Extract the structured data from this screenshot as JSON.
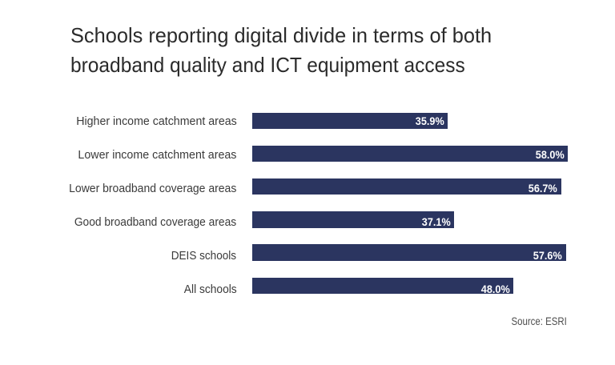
{
  "header": {
    "title_lines": [
      "Schools reporting digital divide in terms of both",
      "broadband quality and ICT equipment access"
    ]
  },
  "footer": {
    "source": "Source: ESRI"
  },
  "chart_data": {
    "type": "bar",
    "orientation": "horizontal",
    "title": "Schools reporting digital divide in terms of both broadband quality and ICT equipment access",
    "categories": [
      "Higher income catchment areas",
      "Lower income catchment areas",
      "Lower broadband coverage areas",
      "Good broadband coverage areas",
      "DEIS schools",
      "All schools"
    ],
    "values": [
      35.9,
      58.0,
      56.7,
      37.1,
      57.6,
      48.0
    ],
    "value_labels": [
      "35.9%",
      "58.0%",
      "56.7%",
      "37.1%",
      "57.6%",
      "48.0%"
    ],
    "xlabel": "",
    "ylabel": "",
    "xlim": [
      0,
      58
    ],
    "grid": false,
    "legend": false,
    "bar_color": "#2b3560",
    "value_label_color": "#ffffff",
    "source": "Source: ESRI"
  }
}
